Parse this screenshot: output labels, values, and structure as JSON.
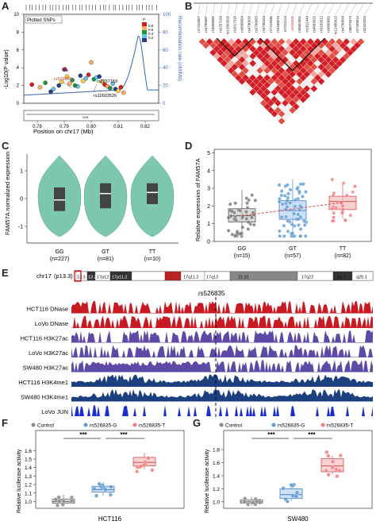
{
  "panels": {
    "A": {
      "letter": "A",
      "legend_label": "Plotted SNPs",
      "ylabel": "-Log10(P value)",
      "y2label": "Recombination rate (cM/Mb)",
      "xlabel": "Position on chr17 (Mb)",
      "yticks": [
        "0",
        "2",
        "4",
        "6",
        "8",
        "10"
      ],
      "y2ticks": [
        "0",
        "20",
        "40",
        "60",
        "80",
        "100"
      ],
      "xticks": [
        "0.78",
        "0.79",
        "0.80",
        "0.81",
        "0.82"
      ],
      "r2_title": "r²",
      "r2_ticks": [
        "0.8",
        "0.6",
        "0.4",
        "0.2"
      ],
      "snp_labels": [
        "rs526835",
        "rs2257159",
        "rs12603526"
      ],
      "gene_label": "NXN"
    },
    "B": {
      "letter": "B",
      "highlight_snp": "rs526835",
      "snp_ids": [
        "rs7222007",
        "rs4790687",
        "rs3899082",
        "rs2257159",
        "rs12603526",
        "rs2017316",
        "rs9895604",
        "rs4790626",
        "rs3760063",
        "rs4790424",
        "rs7219340",
        "rs3168019",
        "rs7211124",
        "rs526835",
        "rs6502561",
        "rs1811449",
        "rs9893022",
        "rs3169512",
        "rs3899082",
        "rs12450623",
        "rs4790699",
        "rs8079474",
        "rs7208514",
        "rs2322023"
      ]
    },
    "C": {
      "letter": "C",
      "ylabel": "FAM57A normalized expression",
      "yticks": [
        "1",
        "0",
        "-1"
      ],
      "groups": [
        {
          "label": "GG",
          "n": "(n=227)"
        },
        {
          "label": "GT",
          "n": "(n=81)"
        },
        {
          "label": "TT",
          "n": "(n=10)"
        }
      ]
    },
    "D": {
      "letter": "D",
      "ylabel": "Relative expression of FAM57A",
      "yticks": [
        "0",
        "1",
        "2",
        "3",
        "4",
        "5"
      ],
      "groups": [
        {
          "label": "GG",
          "n": "(n=15)"
        },
        {
          "label": "GT",
          "n": "(n=57)"
        },
        {
          "label": "TT",
          "n": "(n=82)"
        }
      ]
    },
    "E": {
      "letter": "E",
      "chrom": "chr17",
      "band_selected": "(p13.3)",
      "bands": [
        "13.3",
        "13.2",
        "17p12",
        "17p11.2",
        "17q11.2",
        "17q12",
        "21.31",
        "17q22",
        "24.3",
        "q25.1",
        "17q25.3"
      ],
      "snp_label": "rs526835",
      "tracks": [
        "HCT116 DNase",
        "LoVo DNase",
        "HCT116 H3K27ac",
        "LoVo H3K27ac",
        "SW480 H3K27ac",
        "HCT116 H3K4me1",
        "SW480 H3K4me1",
        "LoVo JUN"
      ]
    },
    "F": {
      "letter": "F",
      "ylabel": "Relative luciferase activity",
      "yticks": [
        "1.0",
        "1.1",
        "1.2",
        "1.3",
        "1.4",
        "1.5",
        "1.6"
      ],
      "legend": [
        "Control",
        "rs526835-G",
        "rs526835-T"
      ],
      "sig": [
        "***",
        "***"
      ],
      "cell_line": "HCT116"
    },
    "G": {
      "letter": "G",
      "ylabel": "Relative luciferase activity",
      "yticks": [
        "1.0",
        "1.2",
        "1.4",
        "1.6",
        "1.8"
      ],
      "legend": [
        "Control",
        "rs526835-G",
        "rs526835-T"
      ],
      "sig": [
        "***",
        "***"
      ],
      "cell_line": "SW480"
    }
  },
  "colors": {
    "red": "#c91a22",
    "purple": "#5d4aa6",
    "navy": "#1c3f80",
    "blue": "#1a2fcf",
    "teal": "#7cc7ad",
    "control": "#8c8c8c",
    "g_allele": "#5b9bd5",
    "t_allele": "#f08080",
    "recomb": "#3a64b4"
  },
  "chart_data": [
    {
      "panel": "A",
      "type": "scatter",
      "title": "",
      "xlabel": "Position on chr17 (Mb)",
      "ylabel": "-Log10(P value)",
      "xlim": [
        0.775,
        0.825
      ],
      "ylim": [
        0,
        10
      ],
      "series": [
        {
          "name": "Plotted SNPs",
          "x": [
            0.778,
            0.781,
            0.783,
            0.786,
            0.788,
            0.789,
            0.79,
            0.792,
            0.793,
            0.795,
            0.796,
            0.797,
            0.799,
            0.8,
            0.801,
            0.802,
            0.803,
            0.804,
            0.805,
            0.806,
            0.807,
            0.808,
            0.809,
            0.81,
            0.811,
            0.812,
            0.794,
            0.798,
            0.785,
            0.791
          ],
          "y": [
            2.1,
            1.8,
            2.3,
            1.6,
            2.0,
            2.4,
            3.8,
            2.2,
            2.6,
            1.9,
            3.1,
            2.5,
            3.2,
            4.6,
            2.7,
            2.9,
            3.0,
            2.4,
            2.1,
            1.9,
            1.7,
            2.2,
            1.6,
            1.4,
            1.8,
            1.2,
            2.0,
            2.8,
            1.3,
            3.0
          ]
        }
      ]
    },
    {
      "panel": "C",
      "type": "violin",
      "categories": [
        "GG",
        "GT",
        "TT"
      ],
      "medians": [
        -0.05,
        0.18,
        0.22
      ],
      "q1": [
        -0.45,
        -0.35,
        -0.2
      ],
      "q3": [
        0.4,
        0.55,
        0.55
      ],
      "ylim": [
        -1.6,
        1.6
      ]
    },
    {
      "panel": "D",
      "type": "boxplot",
      "categories": [
        "GG",
        "GT",
        "TT"
      ],
      "medians": [
        1.45,
        1.75,
        2.25
      ],
      "q1": [
        1.1,
        1.25,
        1.8
      ],
      "q3": [
        1.85,
        2.3,
        2.55
      ],
      "whisker_low": [
        0.4,
        0.3,
        1.3
      ],
      "whisker_high": [
        2.9,
        3.5,
        3.2
      ],
      "ylim": [
        0,
        5.2
      ]
    },
    {
      "panel": "F",
      "type": "boxplot",
      "categories": [
        "Control",
        "rs526835-G",
        "rs526835-T"
      ],
      "medians": [
        1.0,
        1.14,
        1.46
      ],
      "q1": [
        0.98,
        1.11,
        1.42
      ],
      "q3": [
        1.03,
        1.18,
        1.52
      ],
      "ylim": [
        0.92,
        1.65
      ]
    },
    {
      "panel": "G",
      "type": "boxplot",
      "categories": [
        "Control",
        "rs526835-G",
        "rs526835-T"
      ],
      "medians": [
        1.0,
        1.11,
        1.55
      ],
      "q1": [
        0.98,
        1.05,
        1.46
      ],
      "q3": [
        1.03,
        1.2,
        1.66
      ],
      "ylim": [
        0.9,
        1.85
      ]
    }
  ]
}
